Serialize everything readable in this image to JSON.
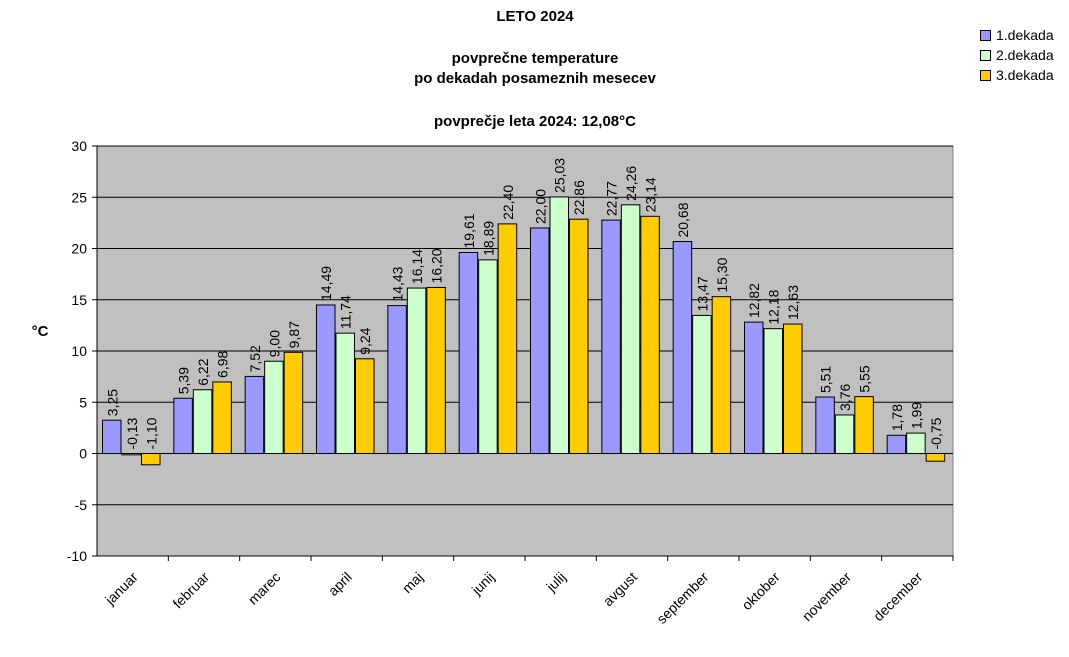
{
  "chart_data": {
    "type": "bar",
    "title": "LETO 2024",
    "subtitle_line1": "povprečne temperature",
    "subtitle_line2": "po dekadah posameznih mesecev",
    "subtitle_line3": "povprečje leta 2024: 12,08°C",
    "ylabel": "°C",
    "xlabel": "",
    "ylim": [
      -10,
      30
    ],
    "yticks": [
      "30",
      "25",
      "20",
      "15",
      "10",
      "5",
      "0",
      "-5",
      "-10"
    ],
    "categories": [
      "januar",
      "februar",
      "marec",
      "april",
      "maj",
      "junij",
      "julij",
      "avgust",
      "september",
      "oktober",
      "november",
      "december"
    ],
    "series": [
      {
        "name": "1.dekada",
        "color": "#9999ff",
        "values": [
          3.25,
          5.39,
          7.52,
          14.49,
          14.43,
          19.61,
          22.0,
          22.77,
          20.68,
          12.82,
          5.51,
          1.78
        ],
        "labels": [
          "3,25",
          "5,39",
          "7,52",
          "14,49",
          "14,43",
          "19,61",
          "22,00",
          "22,77",
          "20,68",
          "12,82",
          "5,51",
          "1,78"
        ]
      },
      {
        "name": "2.dekada",
        "color": "#ccffcc",
        "values": [
          -0.13,
          6.22,
          9.0,
          11.74,
          16.14,
          18.89,
          25.03,
          24.26,
          13.47,
          12.18,
          3.76,
          1.99
        ],
        "labels": [
          "-0,13",
          "6,22",
          "9,00",
          "11,74",
          "16,14",
          "18,89",
          "25,03",
          "24,26",
          "13,47",
          "12,18",
          "3,76",
          "1,99"
        ]
      },
      {
        "name": "3.dekada",
        "color": "#ffcc00",
        "values": [
          -1.1,
          6.98,
          9.87,
          9.24,
          16.2,
          22.4,
          22.86,
          23.14,
          15.3,
          12.63,
          5.55,
          -0.75
        ],
        "labels": [
          "-1,10",
          "6,98",
          "9,87",
          "9,24",
          "16,20",
          "22,40",
          "22,86",
          "23,14",
          "15,30",
          "12,63",
          "5,55",
          "-0,75"
        ]
      }
    ],
    "grid": true,
    "legend": "top-right",
    "plot_background": "#c0c0c0"
  }
}
